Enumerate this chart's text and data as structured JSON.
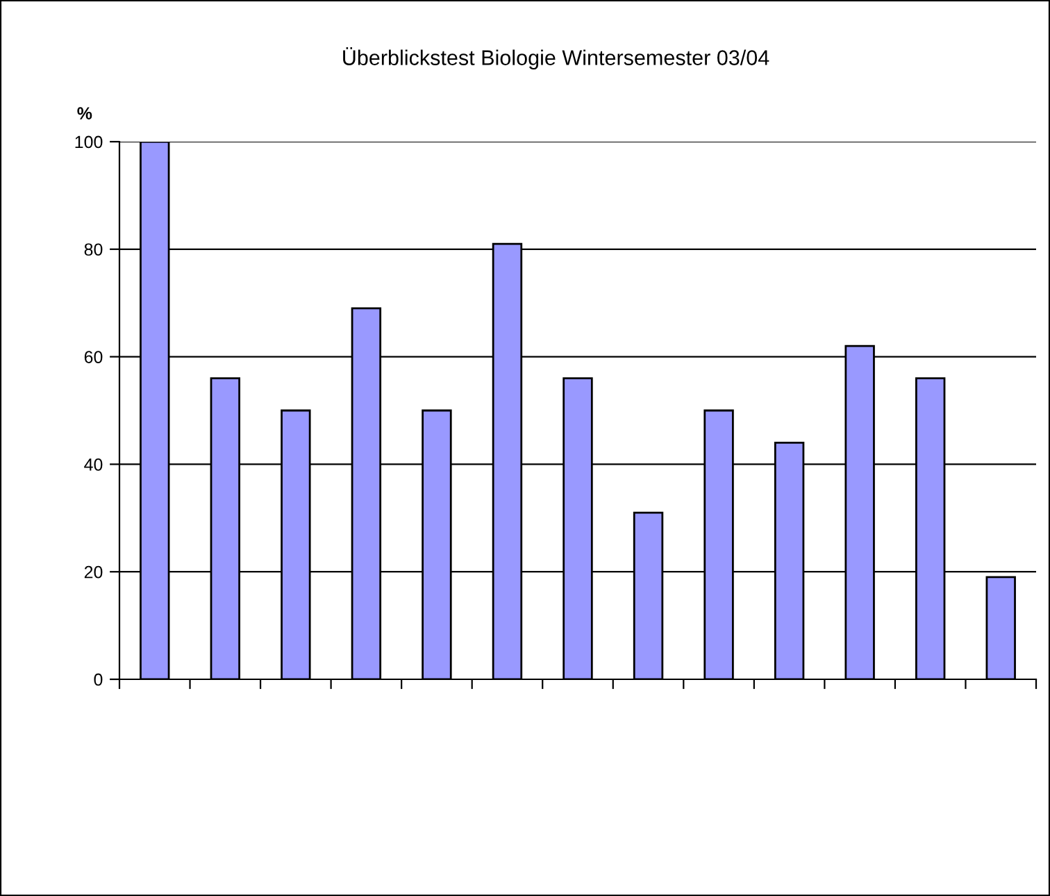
{
  "chart_data": {
    "type": "bar",
    "title": "Überblickstest Biologie Wintersemester 03/04",
    "ylabel": "%",
    "categories": [
      null,
      null,
      null,
      null,
      null,
      null,
      null,
      null,
      null,
      null,
      null,
      null,
      null
    ],
    "values": [
      100,
      56,
      50,
      69,
      50,
      81,
      56,
      31,
      50,
      44,
      62,
      56,
      19
    ],
    "color": "#9999ff",
    "ylim": [
      0,
      100
    ],
    "yticks": [
      0,
      20,
      40,
      60,
      80,
      100
    ],
    "grid": "y"
  }
}
